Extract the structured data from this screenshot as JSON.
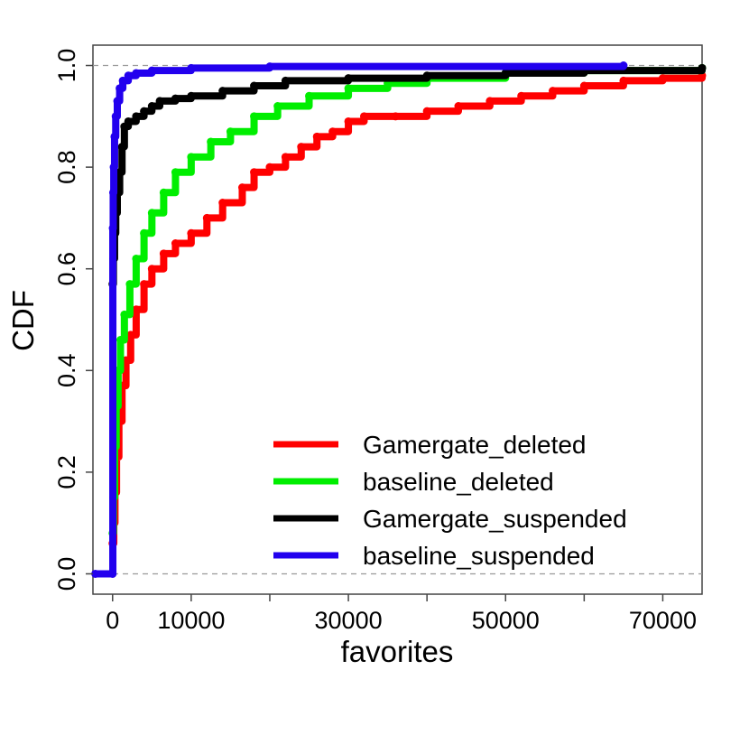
{
  "chart_data": {
    "type": "line",
    "xlabel": "favorites",
    "ylabel": "CDF",
    "xlim": [
      -2500,
      75000
    ],
    "ylim": [
      -0.04,
      1.04
    ],
    "xticks": [
      0,
      10000,
      30000,
      50000,
      70000
    ],
    "xticks_minor": [
      20000,
      40000,
      60000
    ],
    "yticks": [
      0.0,
      0.2,
      0.4,
      0.6,
      0.8,
      1.0
    ],
    "reference_lines": [
      0.0,
      1.0
    ],
    "grid": false,
    "legend_position": "bottom-right",
    "series": [
      {
        "name": "Gamergate_deleted",
        "color": "#ff0000",
        "points": [
          [
            0,
            0.06
          ],
          [
            150,
            0.1
          ],
          [
            300,
            0.16
          ],
          [
            500,
            0.23
          ],
          [
            800,
            0.3
          ],
          [
            1200,
            0.37
          ],
          [
            1700,
            0.42
          ],
          [
            2300,
            0.47
          ],
          [
            3000,
            0.52
          ],
          [
            4000,
            0.57
          ],
          [
            5000,
            0.6
          ],
          [
            6500,
            0.63
          ],
          [
            8000,
            0.65
          ],
          [
            10000,
            0.67
          ],
          [
            12000,
            0.7
          ],
          [
            14000,
            0.73
          ],
          [
            16500,
            0.76
          ],
          [
            18000,
            0.79
          ],
          [
            20000,
            0.8
          ],
          [
            22000,
            0.82
          ],
          [
            24000,
            0.84
          ],
          [
            26000,
            0.86
          ],
          [
            28000,
            0.87
          ],
          [
            30000,
            0.89
          ],
          [
            32000,
            0.9
          ],
          [
            36000,
            0.9
          ],
          [
            40000,
            0.91
          ],
          [
            44000,
            0.92
          ],
          [
            48000,
            0.93
          ],
          [
            52000,
            0.94
          ],
          [
            56000,
            0.95
          ],
          [
            60000,
            0.96
          ],
          [
            65000,
            0.97
          ],
          [
            70000,
            0.975
          ],
          [
            75000,
            0.98
          ]
        ]
      },
      {
        "name": "baseline_deleted",
        "color": "#00ee00",
        "points": [
          [
            0,
            0.08
          ],
          [
            100,
            0.15
          ],
          [
            250,
            0.25
          ],
          [
            450,
            0.33
          ],
          [
            700,
            0.4
          ],
          [
            1000,
            0.46
          ],
          [
            1500,
            0.51
          ],
          [
            2200,
            0.57
          ],
          [
            3000,
            0.62
          ],
          [
            4000,
            0.67
          ],
          [
            5000,
            0.71
          ],
          [
            6500,
            0.75
          ],
          [
            8000,
            0.79
          ],
          [
            10000,
            0.82
          ],
          [
            12500,
            0.85
          ],
          [
            15000,
            0.87
          ],
          [
            18000,
            0.9
          ],
          [
            21000,
            0.92
          ],
          [
            25000,
            0.94
          ],
          [
            30000,
            0.955
          ],
          [
            35000,
            0.965
          ],
          [
            40000,
            0.975
          ],
          [
            50000,
            0.985
          ],
          [
            60000,
            0.99
          ],
          [
            75000,
            0.995
          ]
        ]
      },
      {
        "name": "Gamergate_suspended",
        "color": "#000000",
        "points": [
          [
            0,
            0.57
          ],
          [
            100,
            0.62
          ],
          [
            250,
            0.67
          ],
          [
            400,
            0.71
          ],
          [
            600,
            0.75
          ],
          [
            900,
            0.79
          ],
          [
            1200,
            0.84
          ],
          [
            1500,
            0.88
          ],
          [
            2000,
            0.89
          ],
          [
            3000,
            0.9
          ],
          [
            4000,
            0.91
          ],
          [
            5000,
            0.92
          ],
          [
            6000,
            0.93
          ],
          [
            8000,
            0.935
          ],
          [
            10000,
            0.94
          ],
          [
            14000,
            0.95
          ],
          [
            18000,
            0.96
          ],
          [
            22000,
            0.97
          ],
          [
            30000,
            0.975
          ],
          [
            40000,
            0.98
          ],
          [
            50000,
            0.985
          ],
          [
            60000,
            0.99
          ],
          [
            75000,
            0.995
          ]
        ]
      },
      {
        "name": "baseline_suspended",
        "color": "#2200ee",
        "points": [
          [
            -2200,
            0.0
          ],
          [
            0,
            0.0
          ],
          [
            30,
            0.68
          ],
          [
            80,
            0.75
          ],
          [
            150,
            0.8
          ],
          [
            250,
            0.86
          ],
          [
            400,
            0.9
          ],
          [
            600,
            0.93
          ],
          [
            900,
            0.955
          ],
          [
            1300,
            0.97
          ],
          [
            2000,
            0.98
          ],
          [
            3000,
            0.985
          ],
          [
            5000,
            0.99
          ],
          [
            10000,
            0.995
          ],
          [
            20000,
            0.998
          ],
          [
            65000,
            1.0
          ]
        ]
      }
    ]
  }
}
